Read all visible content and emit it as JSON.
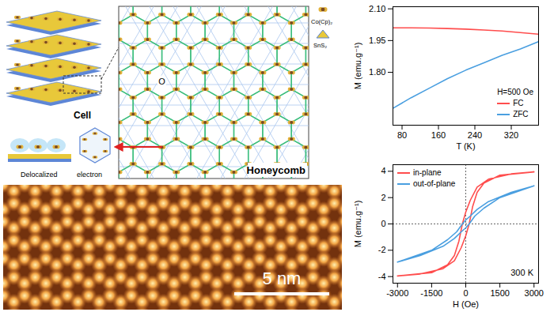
{
  "chart_data": [
    {
      "type": "line",
      "x_label": "T (K)",
      "y_label": "M (emu.g⁻¹)",
      "annotation": "H=500 Oe",
      "xlim": [
        60,
        380
      ],
      "xticks": [
        80,
        160,
        240,
        320
      ],
      "ylim": [
        1.55,
        2.11
      ],
      "yticks": [
        {
          "value": 1.8,
          "label": "1.80"
        },
        {
          "value": 1.95,
          "label": "1.95"
        },
        {
          "value": 2.1,
          "label": "2.10"
        }
      ],
      "legend": "bottom-right",
      "series": [
        {
          "name": "FC",
          "color": "#ff4d4d",
          "x": [
            60,
            100,
            140,
            180,
            220,
            260,
            300,
            340,
            380
          ],
          "values": [
            2.01,
            2.01,
            2.009,
            2.007,
            2.004,
            2.0,
            1.995,
            1.988,
            1.98
          ]
        },
        {
          "name": "ZFC",
          "color": "#4a9fe0",
          "x": [
            60,
            100,
            140,
            180,
            220,
            260,
            300,
            340,
            380
          ],
          "values": [
            1.63,
            1.68,
            1.725,
            1.77,
            1.81,
            1.845,
            1.88,
            1.91,
            1.945
          ]
        }
      ]
    },
    {
      "type": "line",
      "x_label": "H (Oe)",
      "y_label": "M (emu.g⁻¹)",
      "annotation": "300 K",
      "xlim": [
        -3200,
        3200
      ],
      "xticks": [
        -3000,
        -1500,
        0,
        1500,
        3000
      ],
      "ylim": [
        -4.5,
        4.5
      ],
      "yticks": [
        -4,
        -2,
        0,
        2,
        4
      ],
      "legend": "top-left",
      "series": [
        {
          "name": "in-plane",
          "color": "#ff4d4d",
          "x": [
            -3000,
            -2000,
            -1000,
            -500,
            -200,
            0,
            150,
            300,
            500,
            800,
            1500,
            3000,
            2000,
            1000,
            500,
            200,
            0,
            -150,
            -300,
            -500,
            -800,
            -1500,
            -3000
          ],
          "values": [
            -3.95,
            -3.8,
            -3.4,
            -2.8,
            -1.8,
            -0.9,
            0,
            1.3,
            2.4,
            3.1,
            3.7,
            3.95,
            3.8,
            3.4,
            2.8,
            1.8,
            0.9,
            0,
            -1.3,
            -2.4,
            -3.1,
            -3.7,
            -3.95
          ]
        },
        {
          "name": "out-of-plane",
          "color": "#4a9fe0",
          "x": [
            -3000,
            -2000,
            -1000,
            -500,
            -200,
            0,
            150,
            400,
            800,
            1500,
            3000,
            2000,
            1000,
            500,
            200,
            0,
            -150,
            -400,
            -800,
            -1500,
            -3000
          ],
          "values": [
            -2.9,
            -2.4,
            -1.7,
            -1.1,
            -0.6,
            -0.3,
            0,
            0.6,
            1.2,
            2.0,
            2.9,
            2.4,
            1.7,
            1.1,
            0.6,
            0.3,
            0,
            -0.6,
            -1.2,
            -2.0,
            -2.9
          ]
        }
      ]
    }
  ],
  "diagram": {
    "cell_label": "Cell",
    "honeycomb_label": "Honeycomb",
    "site_label": "O",
    "molecule_legend": [
      "Co(Cp)₂",
      "SnS₂"
    ],
    "inset_label": "Delocalized electron",
    "scale_bar": "5 nm"
  }
}
